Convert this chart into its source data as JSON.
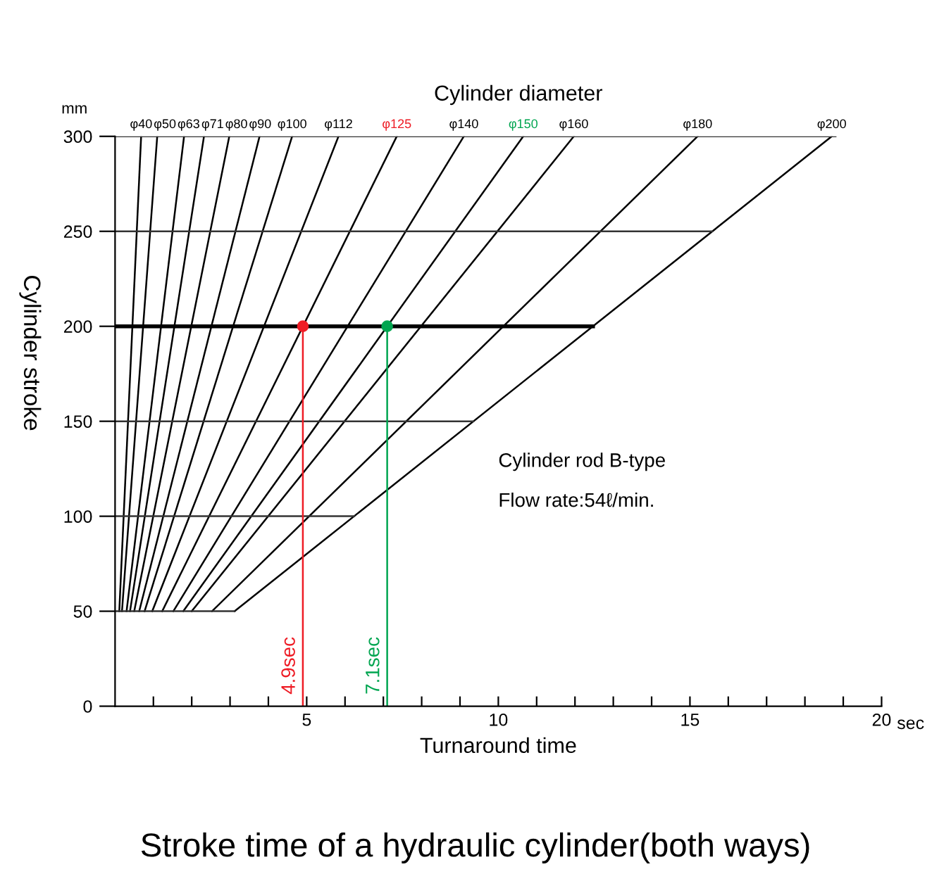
{
  "chart_data": {
    "type": "line",
    "title": "Stroke time of a hydraulic cylinder(both ways)",
    "x2label": "Cylinder diameter",
    "xlabel": "Turnaround time",
    "ylabel": "Cylinder stroke",
    "xlim": [
      0,
      20
    ],
    "ylim": [
      0,
      300
    ],
    "xticks": [
      {
        "value": 1,
        "label": null
      },
      {
        "value": 2,
        "label": null
      },
      {
        "value": 3,
        "label": null
      },
      {
        "value": 4,
        "label": null
      },
      5,
      {
        "value": 6,
        "label": null
      },
      {
        "value": 7,
        "label": null
      },
      {
        "value": 8,
        "label": null
      },
      {
        "value": 9,
        "label": null
      },
      10,
      {
        "value": 11,
        "label": null
      },
      {
        "value": 12,
        "label": null
      },
      {
        "value": 13,
        "label": null
      },
      {
        "value": 14,
        "label": null
      },
      15,
      {
        "value": 16,
        "label": null
      },
      {
        "value": 17,
        "label": null
      },
      {
        "value": 18,
        "label": null
      },
      {
        "value": 19,
        "label": null
      },
      20
    ],
    "yticks": [
      0,
      50,
      100,
      150,
      200,
      250,
      300
    ],
    "grid": false,
    "legend": false,
    "annotations": [
      "Cylinder rod B-type",
      "Flow rate:54ℓ/min.",
      "sec",
      "mm",
      {
        "text": "4.9sec",
        "x": 4.9,
        "y": 0
      },
      {
        "text": "7.1sec",
        "x": 7.1,
        "y": 0
      }
    ],
    "series": [
      {
        "name": "φ40",
        "color": "#000000",
        "x": [
          0.11,
          0.68
        ],
        "values": [
          50,
          300
        ]
      },
      {
        "name": "φ50",
        "color": "#000000",
        "x": [
          0.18,
          1.1
        ],
        "values": [
          50,
          300
        ]
      },
      {
        "name": "φ63",
        "color": "#000000",
        "x": [
          0.3,
          1.8
        ],
        "values": [
          50,
          300
        ]
      },
      {
        "name": "φ71",
        "color": "#000000",
        "x": [
          0.39,
          2.32
        ],
        "values": [
          50,
          300
        ]
      },
      {
        "name": "φ80",
        "color": "#000000",
        "x": [
          0.5,
          2.98
        ],
        "values": [
          50,
          300
        ]
      },
      {
        "name": "φ90",
        "color": "#000000",
        "x": [
          0.63,
          3.77
        ],
        "values": [
          50,
          300
        ]
      },
      {
        "name": "φ100",
        "color": "#000000",
        "x": [
          0.77,
          4.62
        ],
        "values": [
          50,
          300
        ]
      },
      {
        "name": "φ112",
        "color": "#000000",
        "x": [
          0.97,
          5.83
        ],
        "values": [
          50,
          300
        ]
      },
      {
        "name": "φ125",
        "color": "#000000",
        "x": [
          1.23,
          7.35
        ],
        "values": [
          50,
          300
        ]
      },
      {
        "name": "φ140",
        "color": "#000000",
        "x": [
          1.52,
          9.1
        ],
        "values": [
          50,
          300
        ]
      },
      {
        "name": "φ150",
        "color": "#000000",
        "x": [
          1.78,
          10.65
        ],
        "values": [
          50,
          300
        ]
      },
      {
        "name": "φ160",
        "color": "#000000",
        "x": [
          2.0,
          11.97
        ],
        "values": [
          50,
          300
        ]
      },
      {
        "name": "φ180",
        "color": "#000000",
        "x": [
          2.53,
          15.2
        ],
        "values": [
          50,
          300
        ]
      },
      {
        "name": "φ200",
        "color": "#000000",
        "x": [
          3.12,
          18.7
        ],
        "values": [
          50,
          300
        ]
      },
      {
        "color": "#333333",
        "x": [
          0,
          3.12
        ],
        "values": [
          50,
          50
        ]
      },
      {
        "color": "#333333",
        "x": [
          0,
          6.24
        ],
        "values": [
          100,
          100
        ]
      },
      {
        "color": "#333333",
        "x": [
          0,
          9.35
        ],
        "values": [
          150,
          150
        ]
      },
      {
        "color": "#000000",
        "x": [
          0,
          12.47
        ],
        "values": [
          200,
          200
        ]
      },
      {
        "color": "#333333",
        "x": [
          0,
          15.58
        ],
        "values": [
          250,
          250
        ]
      },
      {
        "color": "#333333",
        "x": [
          0,
          18.8
        ],
        "values": [
          300,
          300
        ]
      },
      {
        "color": "#ee1c25",
        "x": [
          4.9,
          4.9
        ],
        "values": [
          0,
          200
        ]
      },
      {
        "color": "#00a550",
        "x": [
          7.1,
          7.1
        ],
        "values": [
          0,
          200
        ]
      },
      {
        "type": "scatter",
        "marker": "circle",
        "color": "#ee1c25",
        "x": [
          4.9
        ],
        "values": [
          200
        ]
      },
      {
        "type": "scatter",
        "marker": "circle",
        "color": "#00a550",
        "x": [
          7.1
        ],
        "values": [
          200
        ]
      }
    ]
  }
}
